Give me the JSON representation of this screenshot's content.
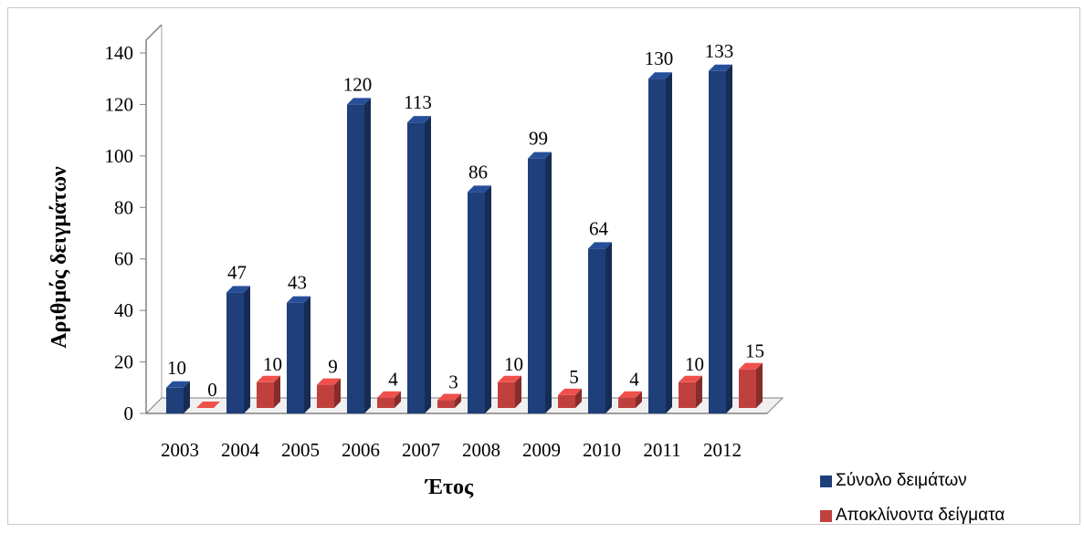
{
  "chart_data": {
    "type": "bar",
    "title": "",
    "xlabel": "Έτος",
    "ylabel": "Αριθμός δειγμάτων",
    "categories": [
      "2003",
      "2004",
      "2005",
      "2006",
      "2007",
      "2008",
      "2009",
      "2010",
      "2011",
      "2012"
    ],
    "series": [
      {
        "name": "Σύνολο δειμάτων",
        "color": "#1f3f7a",
        "values": [
          10,
          47,
          43,
          120,
          113,
          86,
          99,
          64,
          130,
          133
        ]
      },
      {
        "name": "Αποκλίνοντα δείγματα",
        "color": "#c0403d",
        "values": [
          0,
          10,
          9,
          4,
          3,
          10,
          5,
          4,
          10,
          15
        ]
      }
    ],
    "ylim": [
      0,
      140
    ],
    "yticks": [
      0,
      20,
      40,
      60,
      80,
      100,
      120,
      140
    ],
    "grid": false,
    "legend_position": "bottom-right",
    "style": "3d-clustered-column"
  }
}
